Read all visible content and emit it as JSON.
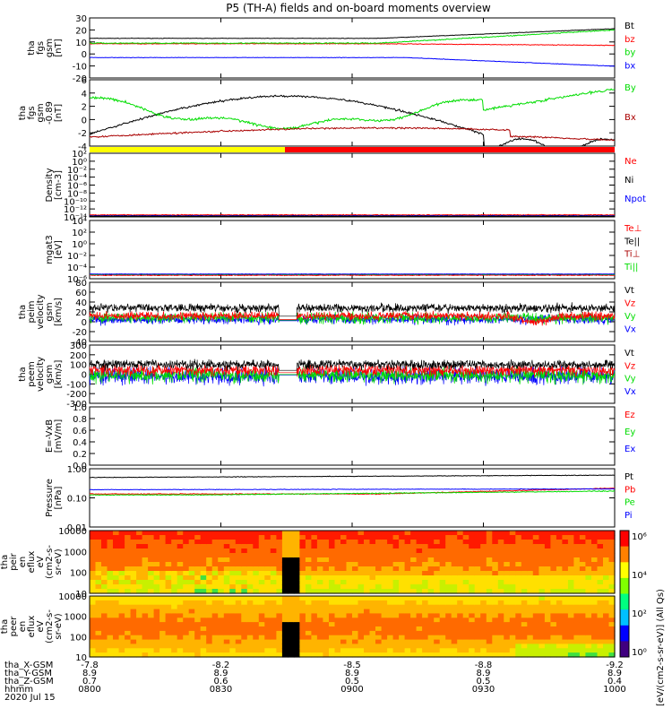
{
  "title": "P5 (TH-A) fields and on-board moments overview",
  "colors": {
    "black": "#000000",
    "red": "#ff0000",
    "green": "#00dd00",
    "blue": "#0000ff",
    "dkred": "#aa0000",
    "yellow": "#ffff00"
  },
  "chart_data": {
    "type": "line",
    "time_axis": {
      "start": "0800",
      "end": "1000",
      "hhmm_ticks": [
        "0800",
        "0830",
        "0900",
        "0930",
        "1000"
      ],
      "rows": [
        {
          "name": "tha_X-GSM",
          "ticks": [
            "-7.8",
            "-8.2",
            "-8.5",
            "-8.8",
            "-9.2"
          ]
        },
        {
          "name": "tha_Y-GSM",
          "ticks": [
            "8.9",
            "8.9",
            "8.9",
            "8.9",
            "8.9"
          ]
        },
        {
          "name": "tha_Z-GSM",
          "ticks": [
            "0.7",
            "0.6",
            "0.5",
            "0.5",
            "0.4"
          ]
        },
        {
          "name": "hhmm",
          "ticks": [
            "0800",
            "0830",
            "0900",
            "0930",
            "1000"
          ]
        }
      ],
      "date": "2020 Jul 15"
    },
    "panels": [
      {
        "id": "fgs",
        "ylabel": [
          "tha",
          "fgs",
          "gsm",
          "[nT]"
        ],
        "ylim": [
          -20,
          30
        ],
        "ticks": [
          "30",
          "20",
          "10",
          "0",
          "-10",
          "-20"
        ],
        "series": [
          {
            "name": "Bt",
            "color": "black"
          },
          {
            "name": "bz",
            "color": "red"
          },
          {
            "name": "by",
            "color": "green"
          },
          {
            "name": "bx",
            "color": "blue"
          }
        ]
      },
      {
        "id": "fgs_deg",
        "ylabel": [
          "tha",
          "fgs",
          "gsm",
          "-0.89",
          "[nT]"
        ],
        "ylim": [
          -5,
          6
        ],
        "ticks": [
          "6",
          "4",
          "2",
          "0",
          "-2",
          "-4"
        ],
        "series": [
          {
            "name": "By",
            "color": "green"
          },
          {
            "name": "Bx",
            "color": "dkred"
          }
        ]
      },
      {
        "id": "density",
        "ylabel": [
          "Density",
          "[cm-3]"
        ],
        "log": true,
        "ticks": [
          "10²",
          "10⁰",
          "10⁻²",
          "10⁻⁴",
          "10⁻⁶",
          "10⁻⁸",
          "10⁻¹⁰",
          "10⁻¹²",
          "10⁻¹⁴"
        ],
        "series": [
          {
            "name": "Ne",
            "color": "red"
          },
          {
            "name": "Ni",
            "color": "black"
          },
          {
            "name": "Npot",
            "color": "blue"
          }
        ]
      },
      {
        "id": "temp",
        "ylabel": [
          "mgat3",
          "[eV]"
        ],
        "log": true,
        "ticks": [
          "10⁴",
          "10²",
          "10⁰",
          "10⁻²",
          "10⁻⁴",
          "10⁻⁶"
        ],
        "series": [
          {
            "name": "Te⊥",
            "color": "red"
          },
          {
            "name": "Te||",
            "color": "black"
          },
          {
            "name": "Ti⊥",
            "color": "dkred"
          },
          {
            "name": "Ti||",
            "color": "green"
          }
        ]
      },
      {
        "id": "peim",
        "ylabel": [
          "tha",
          "peim",
          "velocity",
          "gsm",
          "[km/s]"
        ],
        "ylim": [
          -40,
          80
        ],
        "ticks": [
          "80",
          "60",
          "40",
          "20",
          "0",
          "-20",
          "-40"
        ],
        "series": [
          {
            "name": "Vt",
            "color": "black"
          },
          {
            "name": "Vz",
            "color": "red"
          },
          {
            "name": "Vy",
            "color": "green"
          },
          {
            "name": "Vx",
            "color": "blue"
          }
        ]
      },
      {
        "id": "peem",
        "ylabel": [
          "tha",
          "peem",
          "velocity",
          "gsm",
          "[km/s]"
        ],
        "ylim": [
          -300,
          300
        ],
        "ticks": [
          "300",
          "200",
          "100",
          "0",
          "-100",
          "-200",
          "-300"
        ],
        "series": [
          {
            "name": "Vt",
            "color": "black"
          },
          {
            "name": "Vz",
            "color": "red"
          },
          {
            "name": "Vy",
            "color": "green"
          },
          {
            "name": "Vx",
            "color": "blue"
          }
        ]
      },
      {
        "id": "efield",
        "ylabel": [
          "E=-VxB",
          "[mV/m]"
        ],
        "ylim": [
          0,
          1
        ],
        "ticks": [
          "1.0",
          "0.8",
          "0.6",
          "0.4",
          "0.2",
          "0.0"
        ],
        "series": [
          {
            "name": "Ez",
            "color": "red"
          },
          {
            "name": "Ey",
            "color": "green"
          },
          {
            "name": "Ex",
            "color": "blue"
          }
        ]
      },
      {
        "id": "pressure",
        "ylabel": [
          "Pressure",
          "[nPa]"
        ],
        "log": true,
        "ticks": [
          "1.00",
          "0.10",
          "0.01"
        ],
        "series": [
          {
            "name": "Pt",
            "color": "black"
          },
          {
            "name": "Pb",
            "color": "red"
          },
          {
            "name": "Pe",
            "color": "green"
          },
          {
            "name": "Pi",
            "color": "blue"
          }
        ]
      },
      {
        "id": "peir",
        "ylabel": [
          "tha",
          "peir",
          "en",
          "eflux",
          "eV",
          "(cm2-s-",
          "sr-eV)"
        ],
        "log": true,
        "ticks": [
          "10000",
          "1000",
          "100",
          "10"
        ]
      },
      {
        "id": "peer",
        "ylabel": [
          "tha",
          "peer",
          "en",
          "eflux",
          "eV",
          "(cm2-s-",
          "sr-eV)"
        ],
        "log": true,
        "ticks": [
          "10000",
          "1000",
          "100",
          "10"
        ]
      }
    ],
    "colorbar": {
      "label": "[eV/(cm2-s-sr-eV)] (All Qs)",
      "ticks": [
        "10⁶",
        "10⁴",
        "10²",
        "10⁰"
      ]
    }
  }
}
